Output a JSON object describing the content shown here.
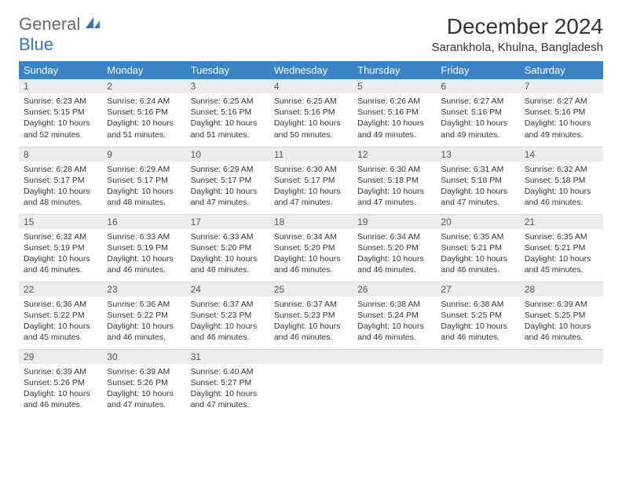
{
  "logo": {
    "word1": "General",
    "word2": "Blue"
  },
  "title": "December 2024",
  "location": "Sarankhola, Khulna, Bangladesh",
  "colors": {
    "header_bg": "#3a84c6",
    "header_text": "#ffffff",
    "day_num_bg": "#ececec",
    "week_sep": "#2e7ac3",
    "logo_gray": "#6b6b6b",
    "logo_blue": "#2e7ac3"
  },
  "weekdays": [
    "Sunday",
    "Monday",
    "Tuesday",
    "Wednesday",
    "Thursday",
    "Friday",
    "Saturday"
  ],
  "weeks": [
    [
      {
        "n": "1",
        "sr": "Sunrise: 6:23 AM",
        "ss": "Sunset: 5:15 PM",
        "dl": "Daylight: 10 hours and 52 minutes."
      },
      {
        "n": "2",
        "sr": "Sunrise: 6:24 AM",
        "ss": "Sunset: 5:16 PM",
        "dl": "Daylight: 10 hours and 51 minutes."
      },
      {
        "n": "3",
        "sr": "Sunrise: 6:25 AM",
        "ss": "Sunset: 5:16 PM",
        "dl": "Daylight: 10 hours and 51 minutes."
      },
      {
        "n": "4",
        "sr": "Sunrise: 6:25 AM",
        "ss": "Sunset: 5:16 PM",
        "dl": "Daylight: 10 hours and 50 minutes."
      },
      {
        "n": "5",
        "sr": "Sunrise: 6:26 AM",
        "ss": "Sunset: 5:16 PM",
        "dl": "Daylight: 10 hours and 49 minutes."
      },
      {
        "n": "6",
        "sr": "Sunrise: 6:27 AM",
        "ss": "Sunset: 5:16 PM",
        "dl": "Daylight: 10 hours and 49 minutes."
      },
      {
        "n": "7",
        "sr": "Sunrise: 6:27 AM",
        "ss": "Sunset: 5:16 PM",
        "dl": "Daylight: 10 hours and 49 minutes."
      }
    ],
    [
      {
        "n": "8",
        "sr": "Sunrise: 6:28 AM",
        "ss": "Sunset: 5:17 PM",
        "dl": "Daylight: 10 hours and 48 minutes."
      },
      {
        "n": "9",
        "sr": "Sunrise: 6:29 AM",
        "ss": "Sunset: 5:17 PM",
        "dl": "Daylight: 10 hours and 48 minutes."
      },
      {
        "n": "10",
        "sr": "Sunrise: 6:29 AM",
        "ss": "Sunset: 5:17 PM",
        "dl": "Daylight: 10 hours and 47 minutes."
      },
      {
        "n": "11",
        "sr": "Sunrise: 6:30 AM",
        "ss": "Sunset: 5:17 PM",
        "dl": "Daylight: 10 hours and 47 minutes."
      },
      {
        "n": "12",
        "sr": "Sunrise: 6:30 AM",
        "ss": "Sunset: 5:18 PM",
        "dl": "Daylight: 10 hours and 47 minutes."
      },
      {
        "n": "13",
        "sr": "Sunrise: 6:31 AM",
        "ss": "Sunset: 5:18 PM",
        "dl": "Daylight: 10 hours and 47 minutes."
      },
      {
        "n": "14",
        "sr": "Sunrise: 6:32 AM",
        "ss": "Sunset: 5:18 PM",
        "dl": "Daylight: 10 hours and 46 minutes."
      }
    ],
    [
      {
        "n": "15",
        "sr": "Sunrise: 6:32 AM",
        "ss": "Sunset: 5:19 PM",
        "dl": "Daylight: 10 hours and 46 minutes."
      },
      {
        "n": "16",
        "sr": "Sunrise: 6:33 AM",
        "ss": "Sunset: 5:19 PM",
        "dl": "Daylight: 10 hours and 46 minutes."
      },
      {
        "n": "17",
        "sr": "Sunrise: 6:33 AM",
        "ss": "Sunset: 5:20 PM",
        "dl": "Daylight: 10 hours and 46 minutes."
      },
      {
        "n": "18",
        "sr": "Sunrise: 6:34 AM",
        "ss": "Sunset: 5:20 PM",
        "dl": "Daylight: 10 hours and 46 minutes."
      },
      {
        "n": "19",
        "sr": "Sunrise: 6:34 AM",
        "ss": "Sunset: 5:20 PM",
        "dl": "Daylight: 10 hours and 46 minutes."
      },
      {
        "n": "20",
        "sr": "Sunrise: 6:35 AM",
        "ss": "Sunset: 5:21 PM",
        "dl": "Daylight: 10 hours and 46 minutes."
      },
      {
        "n": "21",
        "sr": "Sunrise: 6:35 AM",
        "ss": "Sunset: 5:21 PM",
        "dl": "Daylight: 10 hours and 45 minutes."
      }
    ],
    [
      {
        "n": "22",
        "sr": "Sunrise: 6:36 AM",
        "ss": "Sunset: 5:22 PM",
        "dl": "Daylight: 10 hours and 45 minutes."
      },
      {
        "n": "23",
        "sr": "Sunrise: 6:36 AM",
        "ss": "Sunset: 5:22 PM",
        "dl": "Daylight: 10 hours and 46 minutes."
      },
      {
        "n": "24",
        "sr": "Sunrise: 6:37 AM",
        "ss": "Sunset: 5:23 PM",
        "dl": "Daylight: 10 hours and 46 minutes."
      },
      {
        "n": "25",
        "sr": "Sunrise: 6:37 AM",
        "ss": "Sunset: 5:23 PM",
        "dl": "Daylight: 10 hours and 46 minutes."
      },
      {
        "n": "26",
        "sr": "Sunrise: 6:38 AM",
        "ss": "Sunset: 5:24 PM",
        "dl": "Daylight: 10 hours and 46 minutes."
      },
      {
        "n": "27",
        "sr": "Sunrise: 6:38 AM",
        "ss": "Sunset: 5:25 PM",
        "dl": "Daylight: 10 hours and 46 minutes."
      },
      {
        "n": "28",
        "sr": "Sunrise: 6:39 AM",
        "ss": "Sunset: 5:25 PM",
        "dl": "Daylight: 10 hours and 46 minutes."
      }
    ],
    [
      {
        "n": "29",
        "sr": "Sunrise: 6:39 AM",
        "ss": "Sunset: 5:26 PM",
        "dl": "Daylight: 10 hours and 46 minutes."
      },
      {
        "n": "30",
        "sr": "Sunrise: 6:39 AM",
        "ss": "Sunset: 5:26 PM",
        "dl": "Daylight: 10 hours and 47 minutes."
      },
      {
        "n": "31",
        "sr": "Sunrise: 6:40 AM",
        "ss": "Sunset: 5:27 PM",
        "dl": "Daylight: 10 hours and 47 minutes."
      },
      null,
      null,
      null,
      null
    ]
  ]
}
